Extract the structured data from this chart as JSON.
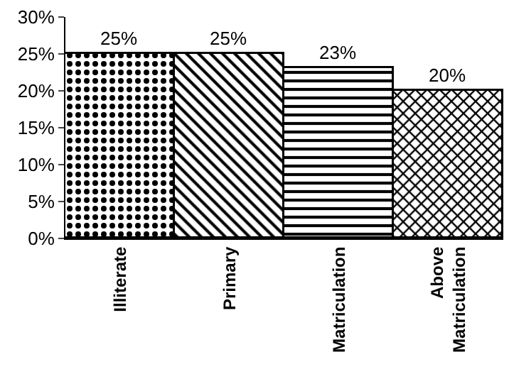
{
  "chart_data": {
    "type": "bar",
    "categories": [
      "Illiterate",
      "Primary",
      "Matriculation",
      "Above Matriculation"
    ],
    "values": [
      25,
      25,
      23,
      20
    ],
    "color": "#000000",
    "value_labels": [
      "25%",
      "25%",
      "23%",
      "20%"
    ],
    "ylim": [
      0,
      30
    ],
    "yticks": [
      {
        "value": 0,
        "label": "0%"
      },
      {
        "value": 5,
        "label": "5%"
      },
      {
        "value": 10,
        "label": "10%"
      },
      {
        "value": 15,
        "label": "15%"
      },
      {
        "value": 20,
        "label": "20%"
      },
      {
        "value": 25,
        "label": "25%"
      },
      {
        "value": 30,
        "label": "30%"
      }
    ],
    "grid": false
  }
}
